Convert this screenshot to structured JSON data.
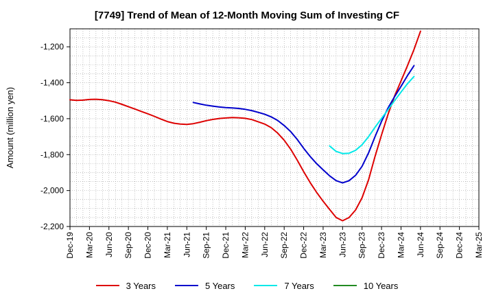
{
  "chart_data": {
    "type": "line",
    "title": "[7749]  Trend of Mean of 12-Month Moving Sum of Investing CF",
    "ylabel": "Amount (million yen)",
    "xlabel": "",
    "ylim": [
      -2200,
      -1100
    ],
    "yticks": [
      -1200,
      -1400,
      -1600,
      -1800,
      -2000,
      -2200
    ],
    "ytick_labels": [
      "-1,200",
      "-1,400",
      "-1,600",
      "-1,800",
      "-2,000",
      "-2,200"
    ],
    "x_start": "Dec-19",
    "x_end": "Mar-25",
    "xtick_labels": [
      "Dec-19",
      "Mar-20",
      "Jun-20",
      "Sep-20",
      "Dec-20",
      "Mar-21",
      "Jun-21",
      "Sep-21",
      "Dec-21",
      "Mar-22",
      "Jun-22",
      "Sep-22",
      "Dec-22",
      "Mar-23",
      "Jun-23",
      "Sep-23",
      "Dec-23",
      "Mar-24",
      "Jun-24",
      "Sep-24",
      "Dec-24",
      "Mar-25"
    ],
    "grid": true,
    "series": [
      {
        "name": "3 Years",
        "color": "#dd0000",
        "points": [
          [
            0,
            -1495
          ],
          [
            1,
            -1498
          ],
          [
            2,
            -1497
          ],
          [
            3,
            -1493
          ],
          [
            4,
            -1492
          ],
          [
            5,
            -1494
          ],
          [
            6,
            -1500
          ],
          [
            7,
            -1508
          ],
          [
            8,
            -1520
          ],
          [
            9,
            -1533
          ],
          [
            10,
            -1546
          ],
          [
            11,
            -1560
          ],
          [
            12,
            -1573
          ],
          [
            13,
            -1587
          ],
          [
            14,
            -1602
          ],
          [
            15,
            -1616
          ],
          [
            16,
            -1625
          ],
          [
            17,
            -1630
          ],
          [
            18,
            -1632
          ],
          [
            19,
            -1628
          ],
          [
            20,
            -1620
          ],
          [
            21,
            -1611
          ],
          [
            22,
            -1604
          ],
          [
            23,
            -1599
          ],
          [
            24,
            -1596
          ],
          [
            25,
            -1594
          ],
          [
            26,
            -1595
          ],
          [
            27,
            -1598
          ],
          [
            28,
            -1605
          ],
          [
            29,
            -1617
          ],
          [
            30,
            -1630
          ],
          [
            31,
            -1650
          ],
          [
            32,
            -1680
          ],
          [
            33,
            -1720
          ],
          [
            34,
            -1770
          ],
          [
            35,
            -1830
          ],
          [
            36,
            -1895
          ],
          [
            37,
            -1955
          ],
          [
            38,
            -2010
          ],
          [
            39,
            -2060
          ],
          [
            40,
            -2105
          ],
          [
            41,
            -2150
          ],
          [
            42,
            -2168
          ],
          [
            43,
            -2150
          ],
          [
            44,
            -2108
          ],
          [
            45,
            -2040
          ],
          [
            46,
            -1940
          ],
          [
            47,
            -1810
          ],
          [
            48,
            -1690
          ],
          [
            49,
            -1575
          ],
          [
            50,
            -1475
          ],
          [
            51,
            -1390
          ],
          [
            52,
            -1305
          ],
          [
            53,
            -1215
          ],
          [
            54,
            -1113
          ]
        ]
      },
      {
        "name": "5 Years",
        "color": "#0000cc",
        "points": [
          [
            19,
            -1510
          ],
          [
            20,
            -1518
          ],
          [
            21,
            -1525
          ],
          [
            22,
            -1530
          ],
          [
            23,
            -1535
          ],
          [
            24,
            -1538
          ],
          [
            25,
            -1540
          ],
          [
            26,
            -1543
          ],
          [
            27,
            -1548
          ],
          [
            28,
            -1555
          ],
          [
            29,
            -1565
          ],
          [
            30,
            -1575
          ],
          [
            31,
            -1590
          ],
          [
            32,
            -1610
          ],
          [
            33,
            -1638
          ],
          [
            34,
            -1672
          ],
          [
            35,
            -1715
          ],
          [
            36,
            -1765
          ],
          [
            37,
            -1810
          ],
          [
            38,
            -1850
          ],
          [
            39,
            -1885
          ],
          [
            40,
            -1918
          ],
          [
            41,
            -1945
          ],
          [
            42,
            -1957
          ],
          [
            43,
            -1945
          ],
          [
            44,
            -1915
          ],
          [
            45,
            -1865
          ],
          [
            46,
            -1790
          ],
          [
            47,
            -1700
          ],
          [
            48,
            -1615
          ],
          [
            49,
            -1540
          ],
          [
            50,
            -1478
          ],
          [
            51,
            -1420
          ],
          [
            52,
            -1360
          ],
          [
            53,
            -1305
          ]
        ]
      },
      {
        "name": "7 Years",
        "color": "#00e8e8",
        "points": [
          [
            40,
            -1752
          ],
          [
            41,
            -1782
          ],
          [
            42,
            -1794
          ],
          [
            43,
            -1792
          ],
          [
            44,
            -1776
          ],
          [
            45,
            -1745
          ],
          [
            46,
            -1700
          ],
          [
            47,
            -1648
          ],
          [
            48,
            -1598
          ],
          [
            49,
            -1550
          ],
          [
            50,
            -1500
          ],
          [
            51,
            -1452
          ],
          [
            52,
            -1405
          ],
          [
            53,
            -1365
          ]
        ]
      },
      {
        "name": "10 Years",
        "color": "#228b22",
        "points": []
      }
    ]
  }
}
